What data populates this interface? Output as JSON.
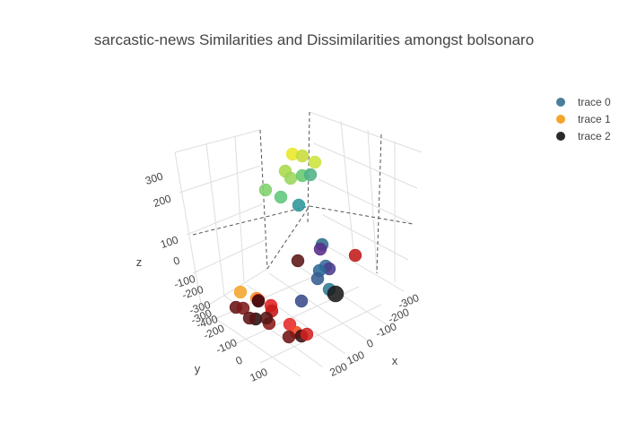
{
  "chart_data": {
    "type": "scatter",
    "title": "sarcastic-news Similarities and Dissimilarities amongst bolsonaro",
    "axes": {
      "x": {
        "label": "x",
        "ticks": [
          "-300",
          "-200",
          "-100",
          "0",
          "100",
          "200"
        ]
      },
      "y": {
        "label": "y",
        "ticks": [
          "-300",
          "-200",
          "-100",
          "0",
          "100"
        ]
      },
      "z": {
        "label": "z",
        "ticks": [
          "300",
          "200",
          "100",
          "0",
          "-100",
          "-200",
          "-300",
          "-400"
        ]
      }
    },
    "legend": {
      "placement": "top-right",
      "entries": [
        {
          "name": "trace 0",
          "color": "#4a7f9b"
        },
        {
          "name": "trace 1",
          "color": "#f4a52b"
        },
        {
          "name": "trace 2",
          "color": "#2a2a2a"
        }
      ]
    },
    "points": [
      {
        "color": "#e8e82a"
      },
      {
        "color": "#c7dc39"
      },
      {
        "color": "#cde23b"
      },
      {
        "color": "#a8d94a"
      },
      {
        "color": "#7fd06a"
      },
      {
        "color": "#9bd65a"
      },
      {
        "color": "#5fc77a"
      },
      {
        "color": "#66c86f"
      },
      {
        "color": "#4fb287"
      },
      {
        "color": "#2d9698"
      },
      {
        "color": "#2f6e8c"
      },
      {
        "color": "#5a2d8a"
      },
      {
        "color": "#c21a1a"
      },
      {
        "color": "#5c1515"
      },
      {
        "color": "#3c6a9a"
      },
      {
        "color": "#4a3c8c"
      },
      {
        "color": "#2a6a96"
      },
      {
        "color": "#355d90"
      },
      {
        "color": "#2f7a96"
      },
      {
        "color": "#1a1a1a"
      },
      {
        "color": "#3a4a8c"
      },
      {
        "color": "#f4a52b"
      },
      {
        "color": "#f09524"
      },
      {
        "color": "#d61414"
      },
      {
        "color": "#3a0d0d"
      },
      {
        "color": "#661515"
      },
      {
        "color": "#e02020"
      },
      {
        "color": "#7d1a1a"
      },
      {
        "color": "#c81818"
      },
      {
        "color": "#8a1c1c"
      },
      {
        "color": "#2b0f0f"
      },
      {
        "color": "#5e1414"
      },
      {
        "color": "#e62828"
      },
      {
        "color": "#581414"
      },
      {
        "color": "#f04820"
      },
      {
        "color": "#3a1010"
      },
      {
        "color": "#d41f1f"
      },
      {
        "color": "#701515"
      }
    ]
  }
}
